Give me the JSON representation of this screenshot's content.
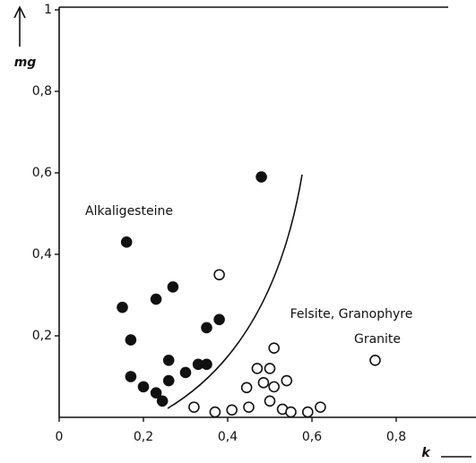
{
  "chart_data": {
    "type": "scatter",
    "x_label": "k",
    "y_label": "mg",
    "xlim": [
      0,
      1
    ],
    "ylim": [
      0,
      1
    ],
    "xticks": [
      0,
      {
        "value": 0.2,
        "label": "0,2"
      },
      {
        "value": 0.4,
        "label": "0,4"
      },
      {
        "value": 0.6,
        "label": "0,6"
      },
      {
        "value": 0.8,
        "label": "0,8"
      }
    ],
    "yticks": [
      {
        "value": 0.2,
        "label": "0,2"
      },
      {
        "value": 0.4,
        "label": "0,4"
      },
      {
        "value": 0.6,
        "label": "0,6"
      },
      {
        "value": 0.8,
        "label": "0,8"
      },
      1
    ],
    "series": [
      {
        "name": "Alkaligesteine",
        "color": "#111111",
        "filled": true,
        "x": [
          0.48,
          0.16,
          0.15,
          0.23,
          0.27,
          0.17,
          0.38,
          0.35,
          0.26,
          0.17,
          0.2,
          0.23,
          0.245,
          0.26,
          0.3,
          0.33,
          0.35
        ],
        "values": [
          0.59,
          0.43,
          0.27,
          0.29,
          0.32,
          0.19,
          0.24,
          0.22,
          0.14,
          0.1,
          0.075,
          0.06,
          0.04,
          0.09,
          0.11,
          0.13,
          0.13
        ]
      },
      {
        "name": "Felsite, Granophyre Granite",
        "color": "#111111",
        "filled": false,
        "x": [
          0.38,
          0.51,
          0.75,
          0.32,
          0.37,
          0.41,
          0.45,
          0.445,
          0.47,
          0.5,
          0.485,
          0.51,
          0.54,
          0.5,
          0.53,
          0.55,
          0.59,
          0.62
        ],
        "values": [
          0.35,
          0.17,
          0.14,
          0.025,
          0.013,
          0.018,
          0.025,
          0.073,
          0.12,
          0.12,
          0.085,
          0.075,
          0.09,
          0.04,
          0.02,
          0.013,
          0.013,
          0.025
        ]
      }
    ]
  }
}
